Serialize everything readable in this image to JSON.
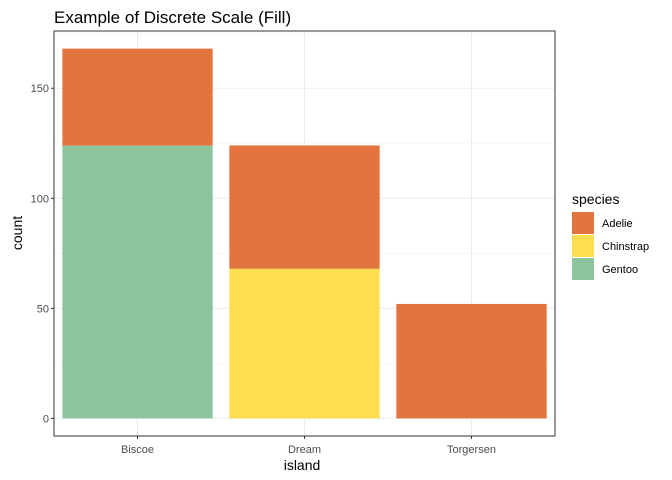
{
  "chart_data": {
    "type": "bar",
    "stacked": true,
    "title": "Example of Discrete Scale (Fill)",
    "xlabel": "island",
    "ylabel": "count",
    "categories": [
      "Biscoe",
      "Dream",
      "Torgersen"
    ],
    "series": [
      {
        "name": "Gentoo",
        "color": "#8DC49D",
        "values": [
          124,
          0,
          0
        ]
      },
      {
        "name": "Chinstrap",
        "color": "#FDDE4E",
        "values": [
          0,
          68,
          0
        ]
      },
      {
        "name": "Adelie",
        "color": "#E3743D",
        "values": [
          44,
          56,
          52
        ]
      }
    ],
    "yticks": [
      0,
      50,
      100,
      150
    ],
    "ylim": [
      -8,
      176
    ],
    "grid": true,
    "legend": {
      "title": "species",
      "position": "right",
      "entries": [
        "Adelie",
        "Chinstrap",
        "Gentoo"
      ]
    }
  }
}
